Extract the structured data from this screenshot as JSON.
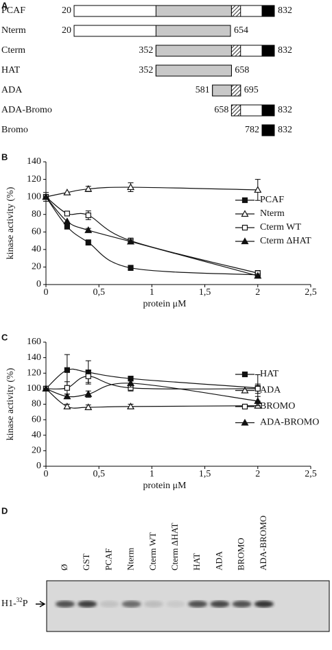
{
  "domain_map": {
    "panel": "A",
    "constructs": [
      {
        "name": "PCAF",
        "start": 20,
        "end": 832
      },
      {
        "name": "Nterm",
        "start": 20,
        "end": 654
      },
      {
        "name": "Cterm",
        "start": 352,
        "end": 832
      },
      {
        "name": "HAT",
        "start": 352,
        "end": 658
      },
      {
        "name": "ADA",
        "start": 581,
        "end": 695
      },
      {
        "name": "ADA-Bromo",
        "start": 658,
        "end": 832
      },
      {
        "name": "Bromo",
        "start": 782,
        "end": 832
      }
    ]
  },
  "chart_data": [
    {
      "panel": "B",
      "type": "line",
      "y_label": "kinase activity (%)",
      "x_label": "protein μM",
      "x": [
        0,
        0.2,
        0.4,
        0.8,
        2
      ],
      "xlim": [
        0,
        2.5
      ],
      "xticks": [
        0,
        {
          "value": 0.5,
          "label": "0,5"
        },
        1,
        {
          "value": 1.5,
          "label": "1,5"
        },
        2,
        {
          "value": 2.5,
          "label": "2,5"
        }
      ],
      "ylim": [
        0,
        140
      ],
      "yticks": [
        0,
        20,
        40,
        60,
        80,
        100,
        120,
        140
      ],
      "series": [
        {
          "name": "PCAF",
          "color": "#111111",
          "marker": "square",
          "filled": true,
          "values": [
            100,
            66,
            48,
            19,
            11
          ],
          "errors": [
            5,
            null,
            3,
            3,
            null
          ]
        },
        {
          "name": "Nterm",
          "color": "#111111",
          "marker": "triangle",
          "filled": false,
          "values": [
            100,
            105,
            109,
            111,
            108
          ],
          "errors": [
            null,
            null,
            3,
            5,
            12
          ]
        },
        {
          "name": "Cterm WT",
          "color": "#111111",
          "marker": "square",
          "filled": false,
          "values": [
            100,
            81,
            79,
            50,
            13
          ],
          "errors": [
            null,
            null,
            5,
            3,
            3
          ]
        },
        {
          "name": "Cterm ΔHAT",
          "color": "#111111",
          "marker": "triangle",
          "filled": true,
          "values": [
            100,
            72,
            62,
            49,
            10
          ],
          "errors": [
            null,
            null,
            2,
            2,
            2
          ]
        }
      ]
    },
    {
      "panel": "C",
      "type": "line",
      "y_label": "kinase activity (%)",
      "x_label": "protein μM",
      "x": [
        0,
        0.2,
        0.4,
        0.8,
        2
      ],
      "xlim": [
        0,
        2.5
      ],
      "xticks": [
        0,
        {
          "value": 0.5,
          "label": "0,5"
        },
        1,
        {
          "value": 1.5,
          "label": "1,5"
        },
        2,
        {
          "value": 2.5,
          "label": "2,5"
        }
      ],
      "ylim": [
        0,
        160
      ],
      "yticks": [
        0,
        20,
        40,
        60,
        80,
        100,
        120,
        140,
        160
      ],
      "series": [
        {
          "name": "HAT",
          "color": "#111111",
          "marker": "square",
          "filled": true,
          "values": [
            100,
            124,
            121,
            113,
            101
          ],
          "errors": [
            null,
            20,
            15,
            3,
            17
          ]
        },
        {
          "name": "ADA",
          "color": "#111111",
          "marker": "triangle",
          "filled": false,
          "values": [
            100,
            77,
            76,
            77,
            78
          ],
          "errors": [
            null,
            3,
            3,
            3,
            3
          ]
        },
        {
          "name": "BROMO",
          "color": "#111111",
          "marker": "square",
          "filled": false,
          "values": [
            100,
            101,
            116,
            101,
            100
          ],
          "errors": [
            null,
            8,
            8,
            4,
            6
          ]
        },
        {
          "name": "ADA-BROMO",
          "color": "#111111",
          "marker": "triangle",
          "filled": true,
          "values": [
            100,
            90,
            93,
            107,
            84
          ],
          "errors": [
            null,
            3,
            4,
            5,
            6
          ]
        }
      ]
    }
  ],
  "gel": {
    "panel": "D",
    "lanes": [
      "Ø",
      "GST",
      "PCAF",
      "Nterm",
      "Cterm WT",
      "Cterm ΔHAT",
      "HAT",
      "ADA",
      "BROMO",
      "ADA-BROMO"
    ],
    "band_label": {
      "prefix": "H1-",
      "superscript": "32",
      "suffix": "P"
    }
  }
}
